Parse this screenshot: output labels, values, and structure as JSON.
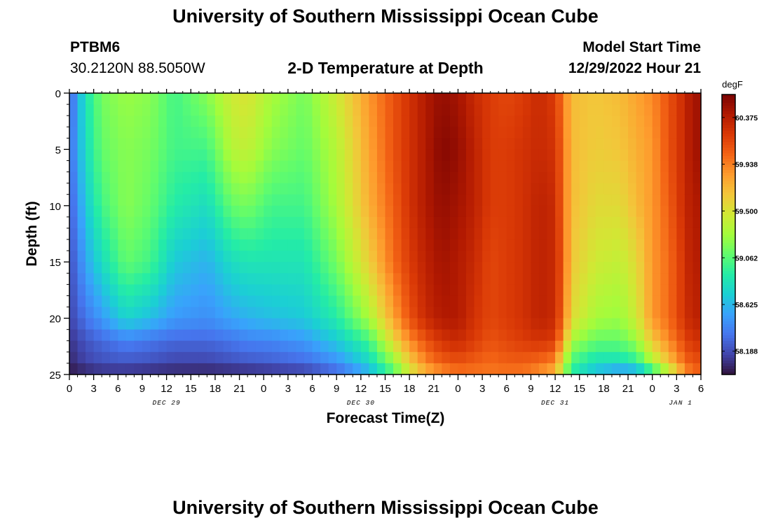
{
  "header": {
    "title": "University of Southern Mississippi Ocean Cube",
    "station_id": "PTBM6",
    "coords": "30.2120N  88.5050W",
    "plot_title": "2-D Temperature at Depth",
    "model_start_label": "Model Start Time",
    "model_start_value": "12/29/2022 Hour 21"
  },
  "footer": {
    "title": "University of Southern Mississippi Ocean Cube"
  },
  "colors": {
    "palette": [
      "#30123b",
      "#4145ab",
      "#4675ed",
      "#39a2fc",
      "#1bcfd4",
      "#24eca6",
      "#61fc6c",
      "#a4fc3b",
      "#d1e834",
      "#f3c63a",
      "#fe9b2d",
      "#f36315",
      "#d93806",
      "#b11901",
      "#7a0403"
    ]
  },
  "chart_data": {
    "type": "heatmap",
    "title": "2-D Temperature at Depth",
    "xlabel": "Forecast Time(Z)",
    "ylabel": "Depth (ft)",
    "x_range_hours": [
      0,
      78
    ],
    "ylim": [
      0,
      25
    ],
    "y_ticks": [
      0,
      5,
      10,
      15,
      20,
      25
    ],
    "x_tick_labels": [
      "0",
      "3",
      "6",
      "9",
      "12",
      "15",
      "18",
      "21",
      "0",
      "3",
      "6",
      "9",
      "12",
      "15",
      "18",
      "21",
      "0",
      "3",
      "6",
      "9",
      "12",
      "15",
      "18",
      "21",
      "0",
      "3",
      "6"
    ],
    "day_labels": [
      {
        "text": "DEC 29",
        "hour": 12
      },
      {
        "text": "DEC 30",
        "hour": 36
      },
      {
        "text": "DEC 31",
        "hour": 60
      },
      {
        "text": "JAN 1",
        "hour": 75.5
      }
    ],
    "colorbar": {
      "unit": "degF",
      "min": 57.97,
      "max": 60.59,
      "tick_labels": [
        "60.375",
        "59.938",
        "59.500",
        "59.062",
        "58.625",
        "58.188"
      ]
    },
    "time_hours": [
      0,
      1,
      2,
      4,
      7,
      10,
      13,
      17,
      20,
      22,
      25,
      29,
      33,
      37,
      40,
      42,
      44,
      46,
      48,
      50,
      52,
      54,
      56,
      58,
      60,
      61,
      62,
      65,
      68,
      70,
      72,
      74,
      76,
      77,
      78
    ],
    "depths_ft": [
      0,
      5,
      10,
      15,
      20,
      22,
      24,
      25
    ],
    "temperature_degF": [
      [
        58.25,
        58.3,
        58.25,
        58.2,
        58.15,
        58.1,
        58.05,
        57.98
      ],
      [
        58.55,
        58.55,
        58.45,
        58.35,
        58.25,
        58.15,
        58.1,
        58.0
      ],
      [
        58.85,
        58.8,
        58.7,
        58.55,
        58.35,
        58.22,
        58.15,
        58.02
      ],
      [
        59.15,
        59.1,
        59.0,
        58.8,
        58.5,
        58.3,
        58.2,
        58.05
      ],
      [
        59.25,
        59.2,
        59.2,
        59.1,
        58.75,
        58.4,
        58.22,
        58.05
      ],
      [
        59.2,
        59.15,
        59.1,
        59.0,
        58.65,
        58.35,
        58.2,
        58.03
      ],
      [
        59.0,
        59.0,
        58.9,
        58.7,
        58.5,
        58.3,
        58.15,
        58.03
      ],
      [
        59.2,
        59.0,
        58.8,
        58.6,
        58.45,
        58.3,
        58.15,
        58.02
      ],
      [
        59.45,
        59.35,
        59.1,
        58.8,
        58.55,
        58.35,
        58.2,
        58.02
      ],
      [
        59.5,
        59.4,
        59.15,
        58.85,
        58.6,
        58.4,
        58.22,
        58.03
      ],
      [
        59.3,
        59.2,
        59.0,
        58.85,
        58.65,
        58.42,
        58.25,
        58.05
      ],
      [
        59.15,
        59.1,
        59.0,
        58.85,
        58.7,
        58.5,
        58.3,
        58.1
      ],
      [
        59.45,
        59.35,
        59.3,
        59.15,
        58.9,
        58.7,
        58.45,
        58.25
      ],
      [
        59.85,
        59.8,
        59.75,
        59.6,
        59.3,
        59.0,
        58.75,
        58.55
      ],
      [
        60.1,
        60.1,
        60.05,
        60.0,
        59.8,
        59.55,
        59.2,
        59.0
      ],
      [
        60.25,
        60.25,
        60.25,
        60.2,
        60.1,
        59.9,
        59.6,
        59.4
      ],
      [
        60.4,
        60.4,
        60.4,
        60.35,
        60.3,
        60.1,
        59.9,
        59.7
      ],
      [
        60.5,
        60.55,
        60.5,
        60.45,
        60.4,
        60.25,
        60.05,
        59.85
      ],
      [
        60.45,
        60.5,
        60.45,
        60.4,
        60.4,
        60.3,
        60.1,
        59.95
      ],
      [
        60.3,
        60.35,
        60.35,
        60.3,
        60.25,
        60.2,
        60.05,
        59.95
      ],
      [
        60.2,
        60.2,
        60.2,
        60.15,
        60.15,
        60.1,
        60.0,
        59.95
      ],
      [
        60.15,
        60.2,
        60.2,
        60.2,
        60.2,
        60.15,
        60.05,
        59.95
      ],
      [
        60.2,
        60.25,
        60.25,
        60.25,
        60.25,
        60.2,
        60.05,
        59.95
      ],
      [
        60.3,
        60.3,
        60.35,
        60.35,
        60.35,
        60.25,
        60.0,
        59.85
      ],
      [
        60.2,
        60.25,
        60.3,
        60.3,
        60.3,
        60.2,
        59.9,
        59.7
      ],
      [
        59.95,
        60.0,
        60.0,
        60.05,
        60.0,
        59.8,
        59.4,
        59.3
      ],
      [
        59.7,
        59.7,
        59.7,
        59.65,
        59.55,
        59.3,
        59.0,
        58.9
      ],
      [
        59.65,
        59.62,
        59.55,
        59.45,
        59.3,
        59.1,
        58.8,
        58.6
      ],
      [
        59.7,
        59.65,
        59.55,
        59.4,
        59.25,
        59.1,
        58.8,
        58.4
      ],
      [
        59.8,
        59.75,
        59.7,
        59.55,
        59.45,
        59.25,
        58.9,
        58.45
      ],
      [
        59.9,
        59.85,
        59.85,
        59.85,
        59.85,
        59.65,
        59.3,
        58.8
      ],
      [
        60.1,
        60.1,
        60.05,
        60.0,
        60.0,
        59.9,
        59.65,
        59.25
      ],
      [
        60.3,
        60.3,
        60.3,
        60.25,
        60.25,
        60.15,
        60.0,
        59.8
      ],
      [
        60.45,
        60.45,
        60.4,
        60.4,
        60.35,
        60.25,
        60.1,
        60.0
      ],
      [
        60.45,
        60.45,
        60.4,
        60.35,
        60.35,
        60.25,
        60.1,
        60.0
      ]
    ]
  }
}
